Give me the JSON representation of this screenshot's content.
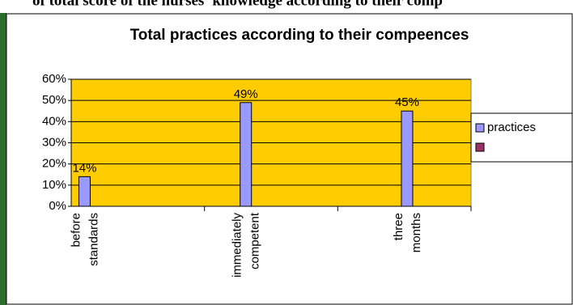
{
  "header_text": "of total score of the nurses' knowledge according to their comp",
  "chart_data": {
    "type": "bar",
    "title": "Total practices according to their compeences",
    "categories": [
      "before standards",
      "immediately competent",
      "three months"
    ],
    "series": [
      {
        "name": "practices",
        "color": "#9999ff",
        "values": [
          14,
          49,
          45
        ],
        "value_labels": [
          "14%",
          "49%",
          "45%"
        ]
      },
      {
        "color": "#993366",
        "values": [
          null,
          null,
          null
        ]
      }
    ],
    "ylim": [
      0,
      60
    ],
    "yticks": [
      {
        "value": 0,
        "label": "0%"
      },
      {
        "value": 10,
        "label": "10%"
      },
      {
        "value": 20,
        "label": "20%"
      },
      {
        "value": 30,
        "label": "30%"
      },
      {
        "value": 40,
        "label": "40%"
      },
      {
        "value": 50,
        "label": "50%"
      },
      {
        "value": 60,
        "label": "60%"
      }
    ],
    "grid": true,
    "legend": "right",
    "plot_background": "#ffcc00"
  }
}
